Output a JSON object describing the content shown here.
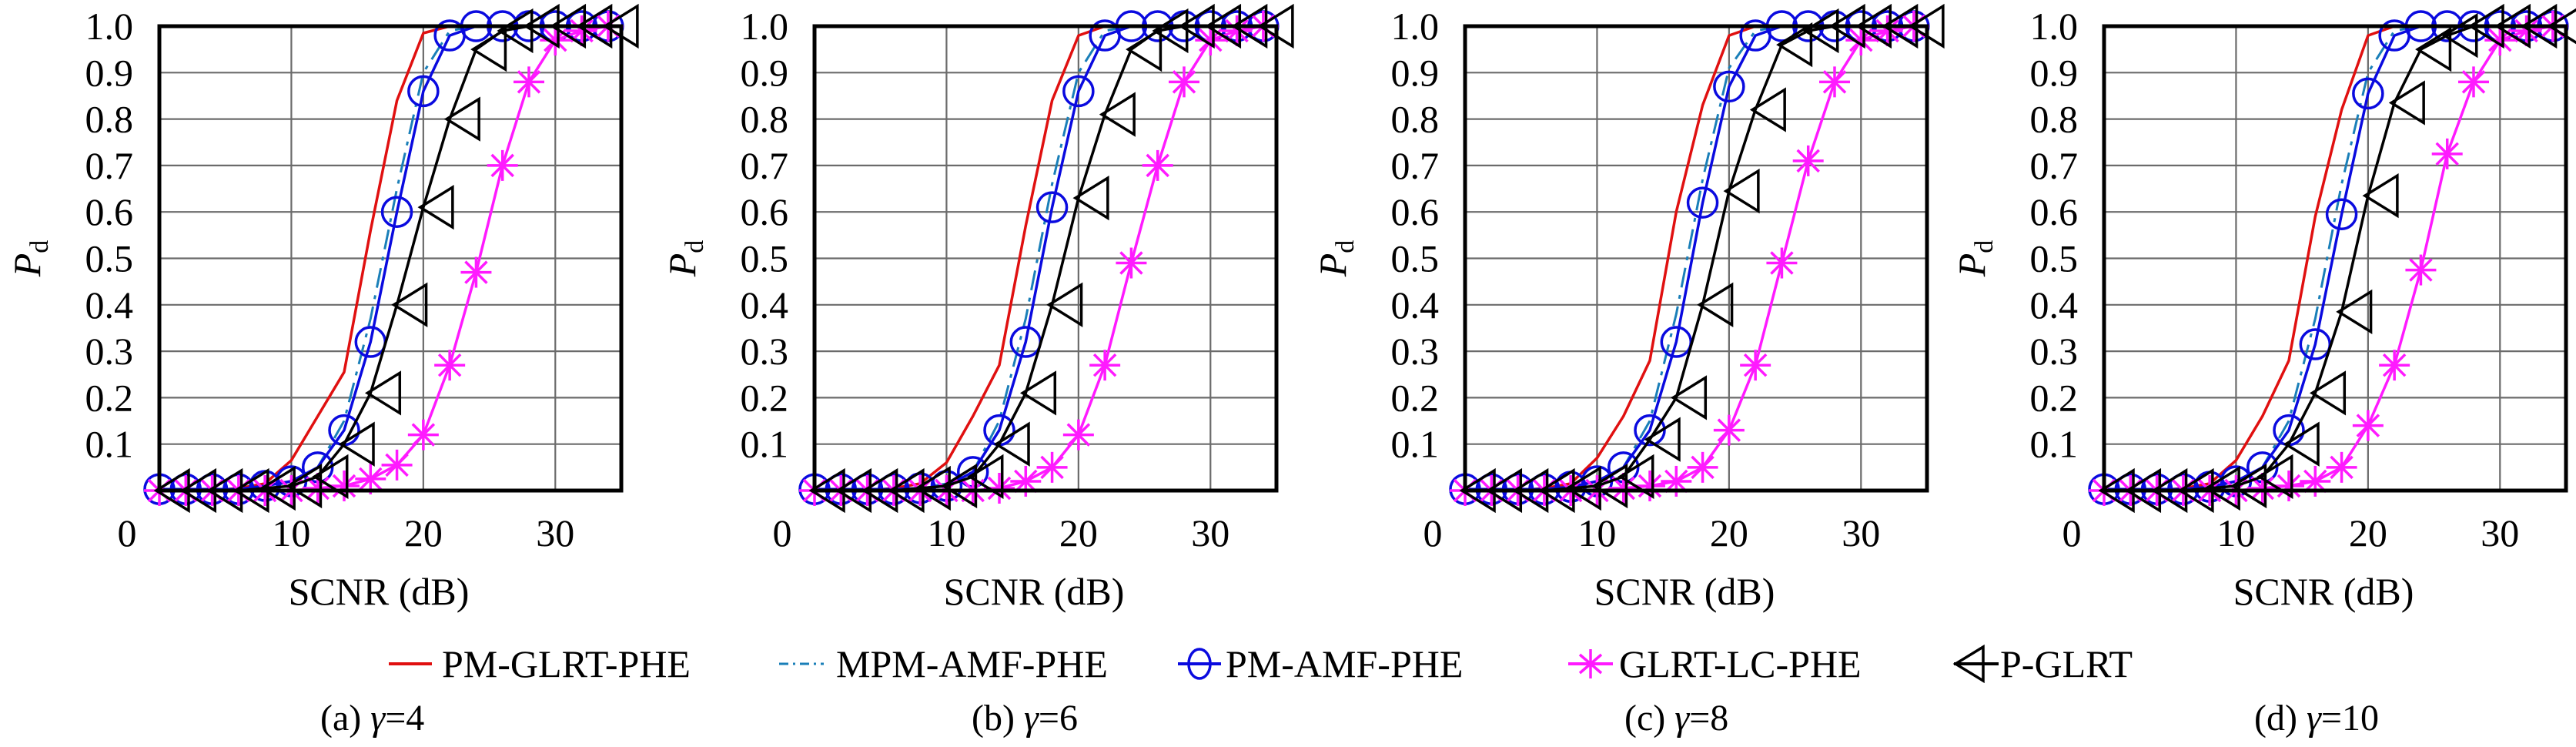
{
  "figure": {
    "legend": [
      {
        "name": "PM-GLRT-PHE",
        "color": "#e01010",
        "style": "solid",
        "marker": "none"
      },
      {
        "name": "MPM-AMF-PHE",
        "color": "#1a7fb8",
        "style": "dashdot",
        "marker": "none"
      },
      {
        "name": "PM-AMF-PHE",
        "color": "#0a0adf",
        "style": "solid",
        "marker": "circle"
      },
      {
        "name": "GLRT-LC-PHE",
        "color": "#ff1aff",
        "style": "solid",
        "marker": "asterisk"
      },
      {
        "name": "P-GLRT",
        "color": "#000000",
        "style": "solid",
        "marker": "triangle-left"
      }
    ],
    "captions": [
      {
        "prefix": "(a) ",
        "gamma": "γ",
        "suffix": "=4"
      },
      {
        "prefix": "(b) ",
        "gamma": "γ",
        "suffix": "=6"
      },
      {
        "prefix": "(c) ",
        "gamma": "γ",
        "suffix": "=8"
      },
      {
        "prefix": "(d) ",
        "gamma": "γ",
        "suffix": "=10"
      }
    ]
  },
  "chart_data": [
    {
      "type": "line",
      "title": "(a) γ=4",
      "xlabel": "SCNR (dB)",
      "ylabel": "P_d",
      "ylabel_main": "P",
      "ylabel_sub": "d",
      "xlim": [
        0,
        35
      ],
      "ylim": [
        0,
        1.0
      ],
      "xticks": [
        0,
        10,
        20,
        30
      ],
      "xtick_labels": [
        "0",
        "10",
        "20",
        "30"
      ],
      "yticks": [
        0.1,
        0.2,
        0.3,
        0.4,
        0.5,
        0.6,
        0.7,
        0.8,
        0.9,
        1.0
      ],
      "ytick_labels": [
        "0.1",
        "0.2",
        "0.3",
        "0.4",
        "0.5",
        "0.6",
        "0.7",
        "0.8",
        "0.9",
        "1.0"
      ],
      "grid": true,
      "x": [
        0,
        2,
        4,
        6,
        8,
        10,
        12,
        14,
        16,
        18,
        20,
        22,
        24,
        26,
        28,
        30,
        32,
        34
      ],
      "series": [
        {
          "name": "PM-GLRT-PHE",
          "values": [
            0,
            0,
            0,
            0.005,
            0.015,
            0.065,
            0.16,
            0.255,
            0.56,
            0.84,
            0.985,
            1.0,
            1.0,
            1.0,
            1.0,
            1.0,
            1.0,
            1.0
          ]
        },
        {
          "name": "MPM-AMF-PHE",
          "values": [
            0,
            0,
            0,
            0,
            0.005,
            0.02,
            0.05,
            0.15,
            0.37,
            0.65,
            0.9,
            0.99,
            1.0,
            1.0,
            1.0,
            1.0,
            1.0,
            1.0
          ]
        },
        {
          "name": "PM-AMF-PHE",
          "values": [
            0.003,
            0.003,
            0.003,
            0.003,
            0.01,
            0.02,
            0.05,
            0.13,
            0.32,
            0.6,
            0.86,
            0.98,
            1.0,
            1.0,
            1.0,
            1.0,
            1.0,
            1.0
          ]
        },
        {
          "name": "GLRT-LC-PHE",
          "values": [
            0,
            0,
            0,
            0,
            0,
            0,
            0.005,
            0.01,
            0.025,
            0.055,
            0.12,
            0.27,
            0.47,
            0.7,
            0.88,
            0.97,
            0.99,
            1.0
          ]
        },
        {
          "name": "P-GLRT",
          "values": [
            0,
            0,
            0,
            0,
            0.005,
            0.01,
            0.03,
            0.1,
            0.21,
            0.4,
            0.61,
            0.8,
            0.95,
            0.99,
            1.0,
            1.0,
            1.0,
            1.0
          ]
        }
      ]
    },
    {
      "type": "line",
      "title": "(b) γ=6",
      "xlabel": "SCNR (dB)",
      "ylabel": "P_d",
      "ylabel_main": "P",
      "ylabel_sub": "d",
      "xlim": [
        0,
        35
      ],
      "ylim": [
        0,
        1.0
      ],
      "xticks": [
        0,
        10,
        20,
        30
      ],
      "xtick_labels": [
        "0",
        "10",
        "20",
        "30"
      ],
      "yticks": [
        0.1,
        0.2,
        0.3,
        0.4,
        0.5,
        0.6,
        0.7,
        0.8,
        0.9,
        1.0
      ],
      "ytick_labels": [
        "0.1",
        "0.2",
        "0.3",
        "0.4",
        "0.5",
        "0.6",
        "0.7",
        "0.8",
        "0.9",
        "1.0"
      ],
      "grid": true,
      "x": [
        0,
        2,
        4,
        6,
        8,
        10,
        12,
        14,
        16,
        18,
        20,
        22,
        24,
        26,
        28,
        30,
        32,
        34
      ],
      "series": [
        {
          "name": "PM-GLRT-PHE",
          "values": [
            0,
            0,
            0,
            0.005,
            0.015,
            0.06,
            0.16,
            0.27,
            0.57,
            0.84,
            0.98,
            1.0,
            1.0,
            1.0,
            1.0,
            1.0,
            1.0,
            1.0
          ]
        },
        {
          "name": "MPM-AMF-PHE",
          "values": [
            0,
            0,
            0,
            0,
            0.005,
            0.015,
            0.04,
            0.15,
            0.37,
            0.66,
            0.9,
            0.99,
            1.0,
            1.0,
            1.0,
            1.0,
            1.0,
            1.0
          ]
        },
        {
          "name": "PM-AMF-PHE",
          "values": [
            0.003,
            0.003,
            0.003,
            0.003,
            0.005,
            0.01,
            0.04,
            0.13,
            0.32,
            0.61,
            0.86,
            0.98,
            1.0,
            1.0,
            1.0,
            1.0,
            1.0,
            1.0
          ]
        },
        {
          "name": "GLRT-LC-PHE",
          "values": [
            0,
            0,
            0,
            0,
            0,
            0,
            0,
            0.005,
            0.02,
            0.05,
            0.12,
            0.27,
            0.49,
            0.7,
            0.88,
            0.97,
            0.99,
            1.0
          ]
        },
        {
          "name": "P-GLRT",
          "values": [
            0,
            0,
            0,
            0,
            0.005,
            0.01,
            0.03,
            0.1,
            0.21,
            0.4,
            0.63,
            0.81,
            0.95,
            0.99,
            1.0,
            1.0,
            1.0,
            1.0
          ]
        }
      ]
    },
    {
      "type": "line",
      "title": "(c) γ=8",
      "xlabel": "SCNR (dB)",
      "ylabel": "P_d",
      "ylabel_main": "P",
      "ylabel_sub": "d",
      "xlim": [
        0,
        35
      ],
      "ylim": [
        0,
        1.0
      ],
      "xticks": [
        0,
        10,
        20,
        30
      ],
      "xtick_labels": [
        "0",
        "10",
        "20",
        "30"
      ],
      "yticks": [
        0.1,
        0.2,
        0.3,
        0.4,
        0.5,
        0.6,
        0.7,
        0.8,
        0.9,
        1.0
      ],
      "ytick_labels": [
        "0.1",
        "0.2",
        "0.3",
        "0.4",
        "0.5",
        "0.6",
        "0.7",
        "0.8",
        "0.9",
        "1.0"
      ],
      "grid": true,
      "x": [
        0,
        2,
        4,
        6,
        8,
        10,
        12,
        14,
        16,
        18,
        20,
        22,
        24,
        26,
        28,
        30,
        32,
        34
      ],
      "series": [
        {
          "name": "PM-GLRT-PHE",
          "values": [
            0,
            0,
            0,
            0.005,
            0.015,
            0.07,
            0.16,
            0.28,
            0.6,
            0.83,
            0.98,
            1.0,
            1.0,
            1.0,
            1.0,
            1.0,
            1.0,
            1.0
          ]
        },
        {
          "name": "MPM-AMF-PHE",
          "values": [
            0,
            0,
            0,
            0,
            0.005,
            0.02,
            0.05,
            0.15,
            0.38,
            0.67,
            0.91,
            0.99,
            1.0,
            1.0,
            1.0,
            1.0,
            1.0,
            1.0
          ]
        },
        {
          "name": "PM-AMF-PHE",
          "values": [
            0.003,
            0.003,
            0.003,
            0.003,
            0.008,
            0.02,
            0.05,
            0.13,
            0.32,
            0.62,
            0.87,
            0.98,
            1.0,
            1.0,
            1.0,
            1.0,
            1.0,
            1.0
          ]
        },
        {
          "name": "GLRT-LC-PHE",
          "values": [
            0,
            0,
            0,
            0,
            0,
            0,
            0.005,
            0.01,
            0.02,
            0.05,
            0.13,
            0.27,
            0.49,
            0.71,
            0.88,
            0.97,
            0.99,
            1.0
          ]
        },
        {
          "name": "P-GLRT",
          "values": [
            0,
            0,
            0,
            0,
            0.005,
            0.01,
            0.03,
            0.11,
            0.2,
            0.4,
            0.645,
            0.82,
            0.96,
            0.99,
            1.0,
            1.0,
            1.0,
            1.0
          ]
        }
      ]
    },
    {
      "type": "line",
      "title": "(d) γ=10",
      "xlabel": "SCNR (dB)",
      "ylabel": "P_d",
      "ylabel_main": "P",
      "ylabel_sub": "d",
      "xlim": [
        0,
        35
      ],
      "ylim": [
        0,
        1.0
      ],
      "xticks": [
        0,
        10,
        20,
        30
      ],
      "xtick_labels": [
        "0",
        "10",
        "20",
        "30"
      ],
      "yticks": [
        0.1,
        0.2,
        0.3,
        0.4,
        0.5,
        0.6,
        0.7,
        0.8,
        0.9,
        1.0
      ],
      "ytick_labels": [
        "0.1",
        "0.2",
        "0.3",
        "0.4",
        "0.5",
        "0.6",
        "0.7",
        "0.8",
        "0.9",
        "1.0"
      ],
      "grid": true,
      "x": [
        0,
        2,
        4,
        6,
        8,
        10,
        12,
        14,
        16,
        18,
        20,
        22,
        24,
        26,
        28,
        30,
        32,
        34
      ],
      "series": [
        {
          "name": "PM-GLRT-PHE",
          "values": [
            0,
            0,
            0,
            0.005,
            0.015,
            0.065,
            0.16,
            0.28,
            0.59,
            0.82,
            0.98,
            1.0,
            1.0,
            1.0,
            1.0,
            1.0,
            1.0,
            1.0
          ]
        },
        {
          "name": "MPM-AMF-PHE",
          "values": [
            0,
            0,
            0,
            0,
            0.005,
            0.02,
            0.05,
            0.15,
            0.37,
            0.66,
            0.9,
            0.99,
            1.0,
            1.0,
            1.0,
            1.0,
            1.0,
            1.0
          ]
        },
        {
          "name": "PM-AMF-PHE",
          "values": [
            0.003,
            0.003,
            0.003,
            0.003,
            0.008,
            0.02,
            0.05,
            0.13,
            0.315,
            0.595,
            0.855,
            0.98,
            1.0,
            1.0,
            1.0,
            1.0,
            1.0,
            1.0
          ]
        },
        {
          "name": "GLRT-LC-PHE",
          "values": [
            0,
            0,
            0,
            0,
            0,
            0,
            0.005,
            0.01,
            0.02,
            0.05,
            0.14,
            0.27,
            0.475,
            0.725,
            0.88,
            0.97,
            0.99,
            1.0
          ]
        },
        {
          "name": "P-GLRT",
          "values": [
            0,
            0,
            0,
            0,
            0.005,
            0.01,
            0.03,
            0.1,
            0.21,
            0.385,
            0.635,
            0.835,
            0.95,
            0.98,
            1.0,
            1.0,
            1.0,
            1.0
          ]
        }
      ]
    }
  ]
}
